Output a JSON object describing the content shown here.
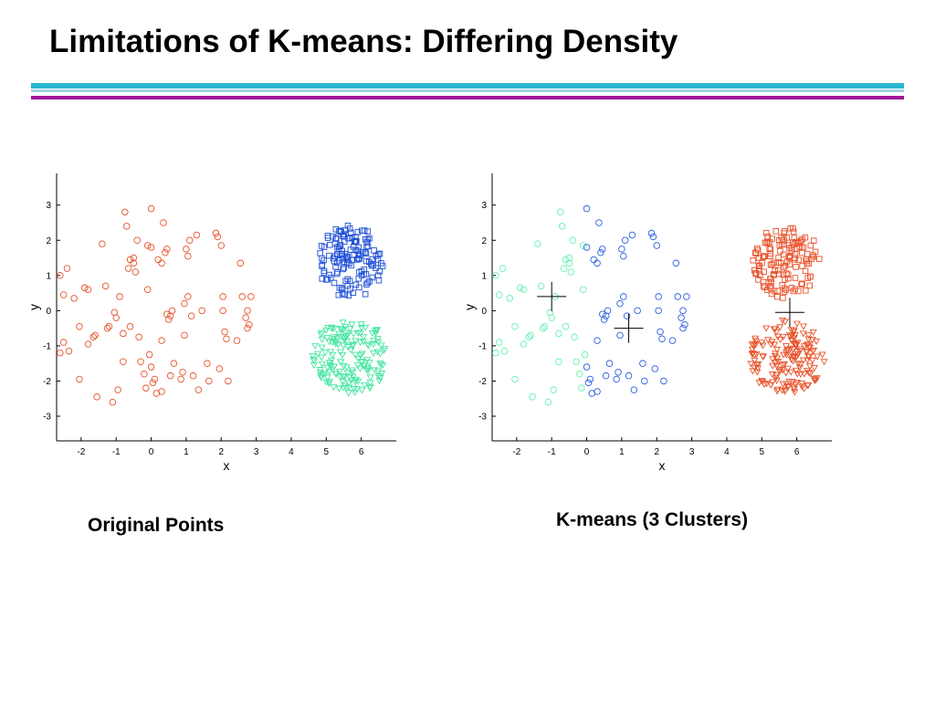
{
  "slide": {
    "title": "Limitations of K-means: Differing Density",
    "bar_colors": [
      "#29b6d1",
      "#9fd3e0",
      "#a0149b"
    ]
  },
  "captions": {
    "left": "Original Points",
    "right": "K-means (3 Clusters)"
  },
  "chart_data": [
    {
      "type": "scatter",
      "panel": "original-points",
      "title": "",
      "xlabel": "x",
      "ylabel": "y",
      "xlim": [
        -2.7,
        7
      ],
      "ylim": [
        -3.7,
        3.9
      ],
      "xticks": [
        -2,
        -1,
        0,
        1,
        2,
        3,
        4,
        5,
        6
      ],
      "yticks": [
        -3,
        -2,
        -1,
        0,
        1,
        2,
        3
      ],
      "grid": false,
      "series": [
        {
          "marker": "circle",
          "color": "#e8532b",
          "points": [
            [
              -2.6,
              1.0
            ],
            [
              -2.5,
              0.45
            ],
            [
              -2.6,
              -1.2
            ],
            [
              -2.5,
              -0.9
            ],
            [
              -2.4,
              1.2
            ],
            [
              -2.35,
              -1.15
            ],
            [
              -2.2,
              0.35
            ],
            [
              -2.05,
              -0.45
            ],
            [
              -2.05,
              -1.95
            ],
            [
              -1.9,
              0.65
            ],
            [
              -1.8,
              0.6
            ],
            [
              -1.8,
              -0.95
            ],
            [
              -1.65,
              -0.75
            ],
            [
              -1.6,
              -0.7
            ],
            [
              -1.55,
              -2.45
            ],
            [
              -1.4,
              1.9
            ],
            [
              -1.3,
              0.7
            ],
            [
              -1.25,
              -0.5
            ],
            [
              -1.2,
              -0.45
            ],
            [
              -1.1,
              -2.6
            ],
            [
              -1.05,
              -0.05
            ],
            [
              -1.0,
              -0.2
            ],
            [
              -0.95,
              -2.25
            ],
            [
              -0.9,
              0.4
            ],
            [
              -0.8,
              -0.65
            ],
            [
              -0.75,
              2.8
            ],
            [
              -0.7,
              2.4
            ],
            [
              -0.65,
              1.2
            ],
            [
              -0.6,
              1.45
            ],
            [
              -0.6,
              -0.45
            ],
            [
              -0.5,
              1.35
            ],
            [
              -0.45,
              1.1
            ],
            [
              -0.4,
              2.0
            ],
            [
              -0.35,
              -0.75
            ],
            [
              -0.3,
              -1.45
            ],
            [
              -0.5,
              1.5
            ],
            [
              -0.8,
              -1.45
            ],
            [
              -0.2,
              -1.8
            ],
            [
              -0.15,
              -2.2
            ],
            [
              -0.1,
              1.85
            ],
            [
              -0.1,
              0.6
            ],
            [
              0.0,
              1.8
            ],
            [
              0.0,
              2.9
            ],
            [
              -0.05,
              -1.25
            ],
            [
              0.0,
              -1.6
            ],
            [
              0.05,
              -2.05
            ],
            [
              0.1,
              -1.95
            ],
            [
              0.15,
              -2.35
            ],
            [
              0.2,
              1.45
            ],
            [
              0.3,
              -0.85
            ],
            [
              0.3,
              1.35
            ],
            [
              0.3,
              -2.3
            ],
            [
              0.35,
              2.5
            ],
            [
              0.4,
              1.65
            ],
            [
              0.45,
              1.75
            ],
            [
              0.45,
              -0.1
            ],
            [
              0.5,
              -0.25
            ],
            [
              0.55,
              -0.15
            ],
            [
              0.55,
              -1.85
            ],
            [
              0.6,
              0.0
            ],
            [
              0.65,
              -1.5
            ],
            [
              0.85,
              -1.95
            ],
            [
              0.9,
              -1.75
            ],
            [
              0.95,
              0.2
            ],
            [
              0.95,
              -0.7
            ],
            [
              1.0,
              1.75
            ],
            [
              1.05,
              1.55
            ],
            [
              1.05,
              0.4
            ],
            [
              1.1,
              2.0
            ],
            [
              1.15,
              -0.15
            ],
            [
              1.2,
              -1.85
            ],
            [
              1.3,
              2.15
            ],
            [
              1.35,
              -2.25
            ],
            [
              1.45,
              0.0
            ],
            [
              1.6,
              -1.5
            ],
            [
              1.65,
              -2.0
            ],
            [
              1.85,
              2.2
            ],
            [
              1.9,
              2.1
            ],
            [
              1.95,
              -1.65
            ],
            [
              2.0,
              1.85
            ],
            [
              2.05,
              0.4
            ],
            [
              2.05,
              0.0
            ],
            [
              2.1,
              -0.6
            ],
            [
              2.15,
              -0.8
            ],
            [
              2.2,
              -2.0
            ],
            [
              2.45,
              -0.85
            ],
            [
              2.55,
              1.35
            ],
            [
              2.6,
              0.4
            ],
            [
              2.7,
              -0.2
            ],
            [
              2.75,
              -0.5
            ],
            [
              2.75,
              0.0
            ],
            [
              2.8,
              -0.4
            ],
            [
              2.85,
              0.4
            ]
          ]
        },
        {
          "marker": "square",
          "color": "#1e4fd6",
          "center": [
            5.7,
            1.4
          ],
          "spread": [
            0.95,
            1.05
          ],
          "count": 140
        },
        {
          "marker": "triangle-down",
          "color": "#46e6a0",
          "center": [
            5.7,
            -1.3
          ],
          "spread": [
            1.1,
            1.05
          ],
          "count": 160
        }
      ]
    },
    {
      "type": "scatter",
      "panel": "kmeans-3-clusters",
      "title": "",
      "xlabel": "x",
      "ylabel": "y",
      "xlim": [
        -2.7,
        7
      ],
      "ylim": [
        -3.7,
        3.9
      ],
      "xticks": [
        -2,
        -1,
        0,
        1,
        2,
        3,
        4,
        5,
        6
      ],
      "yticks": [
        -3,
        -2,
        -1,
        0,
        1,
        2,
        3
      ],
      "grid": false,
      "centroids": [
        [
          -1.0,
          0.4
        ],
        [
          1.2,
          -0.5
        ],
        [
          5.8,
          -0.05
        ]
      ],
      "series": [
        {
          "marker": "circle",
          "color": "#66f0b0",
          "split_x_max": 0.0
        },
        {
          "marker": "circle",
          "color": "#2c5fe0",
          "split_x_min": 0.0
        },
        {
          "marker": "square",
          "color": "#e8532b",
          "center": [
            5.7,
            1.4
          ],
          "spread": [
            0.95,
            1.05
          ],
          "count": 140
        },
        {
          "marker": "triangle-down",
          "color": "#e8532b",
          "center": [
            5.7,
            -1.3
          ],
          "spread": [
            1.1,
            1.05
          ],
          "count": 160
        }
      ]
    }
  ]
}
